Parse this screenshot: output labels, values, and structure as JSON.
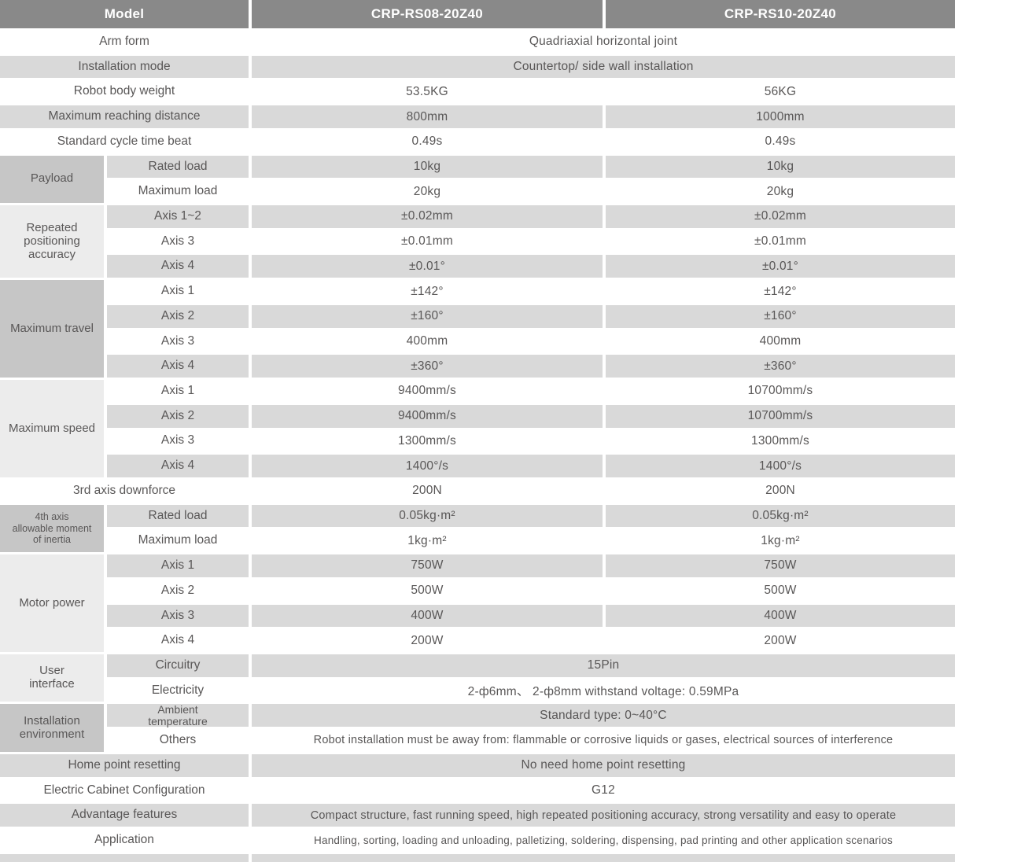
{
  "table": {
    "colors": {
      "header_bg": "#898989",
      "header_text": "#ffffff",
      "stripe_bg": "#d9d9d9",
      "group_dark_bg": "#c6c6c6",
      "group_light_bg": "#ececec",
      "text": "#595757",
      "page_bg": "#ffffff"
    },
    "header": {
      "model": "Model",
      "col1": "CRP-RS08-20Z40",
      "col2": "CRP-RS10-20Z40"
    },
    "rows": [
      {
        "label": "Arm form",
        "values": [
          "Quadriaxial horizontal joint"
        ],
        "shade": false
      },
      {
        "label": "Installation mode",
        "values": [
          "Countertop/ side wall installation"
        ],
        "shade": true
      },
      {
        "label": "Robot body weight",
        "values": [
          "53.5KG",
          "56KG"
        ],
        "shade": false
      },
      {
        "label": "Maximum reaching distance",
        "values": [
          "800mm",
          "1000mm"
        ],
        "shade": true
      },
      {
        "label": "Standard cycle time beat",
        "values": [
          "0.49s",
          "0.49s"
        ],
        "shade": false
      },
      {
        "group": {
          "text": "Payload",
          "rows": 2,
          "tone": "dark"
        },
        "sublabel": "Rated load",
        "values": [
          "10kg",
          "10kg"
        ],
        "shade": true
      },
      {
        "sublabel": "Maximum load",
        "values": [
          "20kg",
          "20kg"
        ],
        "shade": false
      },
      {
        "group": {
          "text": "Repeated\npositioning\naccuracy",
          "rows": 3,
          "tone": "light"
        },
        "sublabel": "Axis 1~2",
        "values": [
          "±0.02mm",
          "±0.02mm"
        ],
        "shade": true
      },
      {
        "sublabel": "Axis 3",
        "values": [
          "±0.01mm",
          "±0.01mm"
        ],
        "shade": false
      },
      {
        "sublabel": "Axis 4",
        "values": [
          "±0.01°",
          "±0.01°"
        ],
        "shade": true
      },
      {
        "group": {
          "text": "Maximum travel",
          "rows": 4,
          "tone": "dark"
        },
        "sublabel": "Axis 1",
        "values": [
          "±142°",
          "±142°"
        ],
        "shade": false
      },
      {
        "sublabel": "Axis 2",
        "values": [
          "±160°",
          "±160°"
        ],
        "shade": true
      },
      {
        "sublabel": "Axis 3",
        "values": [
          "400mm",
          "400mm"
        ],
        "shade": false
      },
      {
        "sublabel": "Axis 4",
        "values": [
          "±360°",
          "±360°"
        ],
        "shade": true
      },
      {
        "group": {
          "text": "Maximum speed",
          "rows": 4,
          "tone": "light"
        },
        "sublabel": "Axis 1",
        "values": [
          "9400mm/s",
          "10700mm/s"
        ],
        "shade": false
      },
      {
        "sublabel": "Axis 2",
        "values": [
          "9400mm/s",
          "10700mm/s"
        ],
        "shade": true
      },
      {
        "sublabel": "Axis 3",
        "values": [
          "1300mm/s",
          "1300mm/s"
        ],
        "shade": false
      },
      {
        "sublabel": "Axis 4",
        "values": [
          "1400°/s",
          "1400°/s"
        ],
        "shade": true
      },
      {
        "label": "3rd axis downforce",
        "values": [
          "200N",
          "200N"
        ],
        "shade": false
      },
      {
        "group": {
          "text": "4th axis\nallowable moment\nof inertia",
          "rows": 2,
          "tone": "dark",
          "size": "xs"
        },
        "sublabel": "Rated load",
        "values": [
          "0.05kg·m²",
          "0.05kg·m²"
        ],
        "shade": true
      },
      {
        "sublabel": "Maximum load",
        "values": [
          "1kg·m²",
          "1kg·m²"
        ],
        "shade": false
      },
      {
        "group": {
          "text": "Motor power",
          "rows": 4,
          "tone": "light"
        },
        "sublabel": "Axis 1",
        "values": [
          "750W",
          "750W"
        ],
        "shade": true
      },
      {
        "sublabel": "Axis 2",
        "values": [
          "500W",
          "500W"
        ],
        "shade": false
      },
      {
        "sublabel": "Axis 3",
        "values": [
          "400W",
          "400W"
        ],
        "shade": true
      },
      {
        "sublabel": "Axis 4",
        "values": [
          "200W",
          "200W"
        ],
        "shade": false
      },
      {
        "group": {
          "text": "User\ninterface",
          "rows": 2,
          "tone": "light"
        },
        "sublabel": "Circuitry",
        "values": [
          "15Pin"
        ],
        "shade": true
      },
      {
        "sublabel": "Electricity",
        "values": [
          "2-ф6mm、 2-ф8mm withstand voltage: 0.59MPa"
        ],
        "shade": false
      },
      {
        "group": {
          "text": "Installation\nenvironment",
          "rows": 2,
          "tone": "dark"
        },
        "sublabel": "Ambient\ntemperature",
        "sub_size": "sm",
        "values": [
          "Standard type:  0~40°C"
        ],
        "shade": true
      },
      {
        "sublabel": "Others",
        "values": [
          "Robot installation must be away from: flammable or corrosive liquids or gases, electrical sources of interference"
        ],
        "value_size": "sm",
        "shade": false
      },
      {
        "label": "Home point resetting",
        "values": [
          "No need home point resetting"
        ],
        "shade": true
      },
      {
        "label": "Electric Cabinet Configuration",
        "values": [
          "G12"
        ],
        "shade": false
      },
      {
        "label": "Advantage features",
        "values": [
          "Compact structure, fast running speed, high repeated positioning accuracy, strong versatility and easy to operate"
        ],
        "value_size": "sm",
        "shade": true
      },
      {
        "label": "Application",
        "values": [
          "Handling, sorting, loading and unloading, palletizing, soldering, dispensing, pad printing and other application scenarios"
        ],
        "value_size": "xs",
        "shade": false
      },
      {
        "label": "",
        "values": [
          ""
        ],
        "shade": true
      }
    ]
  }
}
